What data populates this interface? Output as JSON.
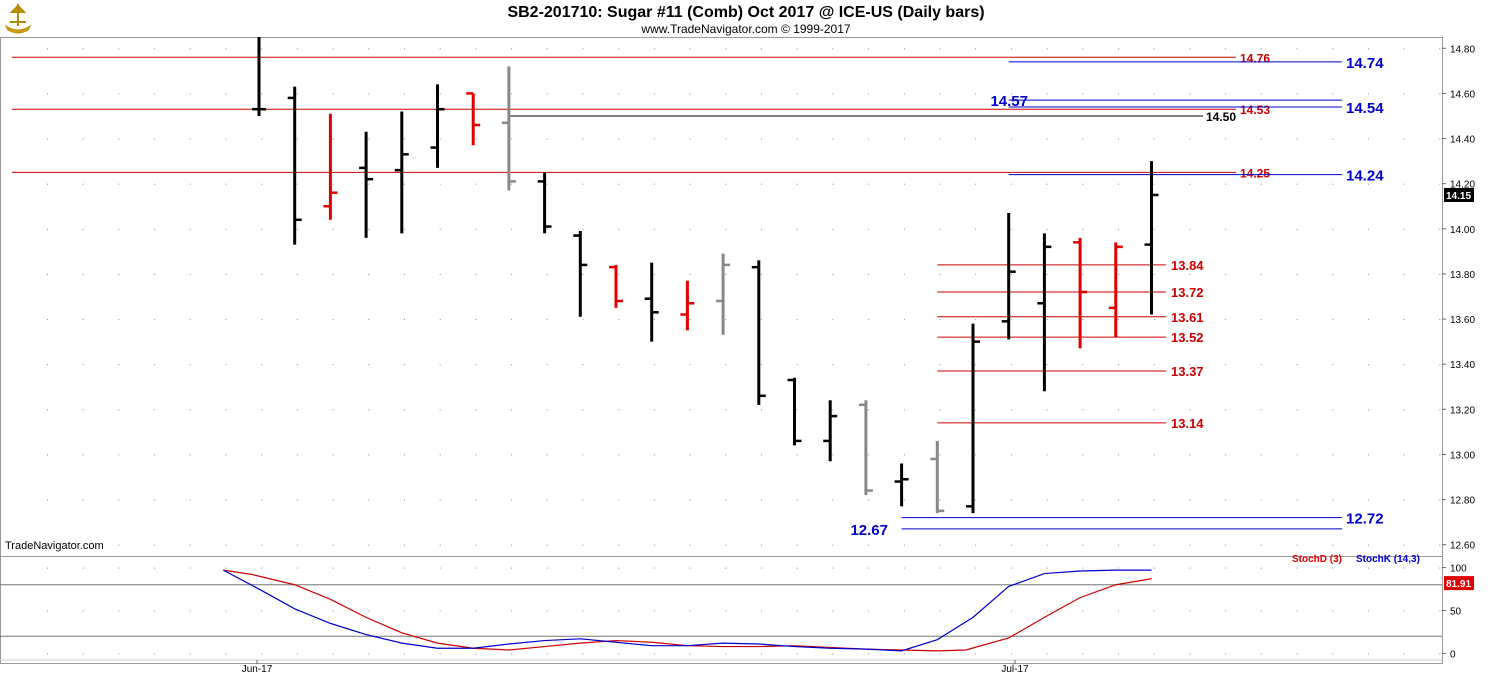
{
  "header": {
    "title": "SB2-201710:  Sugar #11 (Comb) Oct 2017 @ ICE-US  (Daily bars)",
    "subtitle": "www.TradeNavigator.com © 1999-2017",
    "watermark": "TradeNavigator.com",
    "logo_icon": "trading-ship-logo-icon"
  },
  "colors": {
    "up": "#000000",
    "down": "#e00000",
    "neutral": "#888888",
    "green": "#00cc00",
    "red_line": "#cc0000",
    "blue_line": "#0000cc",
    "grid_dot": "#888888"
  },
  "chart_data": [
    {
      "type": "ohlc",
      "name": "price",
      "ylim": [
        12.55,
        14.85
      ],
      "yticks": [
        "14.80",
        "14.60",
        "14.40",
        "14.20",
        "14.00",
        "13.80",
        "13.60",
        "13.40",
        "13.20",
        "13.00",
        "12.80",
        "12.60"
      ],
      "xticks": [
        {
          "label": "Jun-17",
          "bar": 6
        },
        {
          "label": "Jul-17",
          "bar": 28
        }
      ],
      "last_price": "14.15",
      "bars": [
        {
          "bar": 0,
          "o": 14.53,
          "h": 14.85,
          "l": 14.5,
          "c": 14.53,
          "color": "up"
        },
        {
          "bar": 1,
          "o": 14.58,
          "h": 14.63,
          "l": 13.93,
          "c": 14.04,
          "color": "up"
        },
        {
          "bar": 2,
          "o": 14.1,
          "h": 14.51,
          "l": 14.04,
          "c": 14.16,
          "color": "down"
        },
        {
          "bar": 3,
          "o": 14.27,
          "h": 14.43,
          "l": 13.96,
          "c": 14.22,
          "color": "up"
        },
        {
          "bar": 4,
          "o": 14.26,
          "h": 14.52,
          "l": 13.98,
          "c": 14.33,
          "color": "up"
        },
        {
          "bar": 5,
          "o": 14.36,
          "h": 14.64,
          "l": 14.27,
          "c": 14.53,
          "color": "up"
        },
        {
          "bar": 6,
          "o": 14.6,
          "h": 14.6,
          "l": 14.37,
          "c": 14.46,
          "color": "down"
        },
        {
          "bar": 7,
          "o": 14.47,
          "h": 14.72,
          "l": 14.17,
          "c": 14.21,
          "color": "neutral"
        },
        {
          "bar": 8,
          "o": 14.21,
          "h": 14.25,
          "l": 13.98,
          "c": 14.01,
          "color": "up"
        },
        {
          "bar": 9,
          "o": 13.97,
          "h": 13.99,
          "l": 13.61,
          "c": 13.84,
          "color": "up"
        },
        {
          "bar": 10,
          "o": 13.83,
          "h": 13.84,
          "l": 13.65,
          "c": 13.68,
          "color": "down"
        },
        {
          "bar": 11,
          "o": 13.69,
          "h": 13.85,
          "l": 13.5,
          "c": 13.63,
          "color": "up"
        },
        {
          "bar": 12,
          "o": 13.62,
          "h": 13.77,
          "l": 13.55,
          "c": 13.67,
          "color": "down"
        },
        {
          "bar": 13,
          "o": 13.68,
          "h": 13.89,
          "l": 13.53,
          "c": 13.84,
          "color": "neutral"
        },
        {
          "bar": 14,
          "o": 13.83,
          "h": 13.86,
          "l": 13.22,
          "c": 13.26,
          "color": "up"
        },
        {
          "bar": 15,
          "o": 13.33,
          "h": 13.34,
          "l": 13.04,
          "c": 13.06,
          "color": "up"
        },
        {
          "bar": 16,
          "o": 13.06,
          "h": 13.24,
          "l": 12.97,
          "c": 13.17,
          "color": "up"
        },
        {
          "bar": 17,
          "o": 13.22,
          "h": 13.24,
          "l": 12.82,
          "c": 12.84,
          "color": "neutral"
        },
        {
          "bar": 18,
          "o": 12.88,
          "h": 12.96,
          "l": 12.77,
          "c": 12.89,
          "color": "up"
        },
        {
          "bar": 19,
          "o": 12.98,
          "h": 13.06,
          "l": 12.74,
          "c": 12.75,
          "color": "neutral"
        },
        {
          "bar": 20,
          "o": 12.77,
          "h": 13.58,
          "l": 12.74,
          "c": 13.5,
          "color": "up"
        },
        {
          "bar": 21,
          "o": 13.59,
          "h": 14.07,
          "l": 13.51,
          "c": 13.81,
          "color": "up"
        },
        {
          "bar": 22,
          "o": 13.67,
          "h": 13.98,
          "l": 13.28,
          "c": 13.92,
          "color": "up"
        },
        {
          "bar": 23,
          "o": 13.94,
          "h": 13.96,
          "l": 13.47,
          "c": 13.72,
          "color": "down"
        },
        {
          "bar": 24,
          "o": 13.65,
          "h": 13.94,
          "l": 13.52,
          "c": 13.92,
          "color": "down"
        },
        {
          "bar": 25,
          "o": 13.93,
          "h": 14.3,
          "l": 13.62,
          "c": 14.15,
          "color": "up"
        }
      ],
      "horizontal_lines": [
        {
          "value": 14.76,
          "label": "14.76",
          "color": "red_line",
          "x_start_bar": -1,
          "label_bar": 27
        },
        {
          "value": 14.53,
          "label": "14.53",
          "color": "red_line",
          "x_start_bar": -1,
          "label_bar": 27
        },
        {
          "value": 14.25,
          "label": "14.25",
          "color": "red_line",
          "x_start_bar": -1,
          "label_bar": 27
        },
        {
          "value": 14.74,
          "label": "14.74",
          "color": "blue_line",
          "x_start_bar": 21,
          "label_bar": 29
        },
        {
          "value": 14.57,
          "label": "14.57",
          "color": "blue_line",
          "x_start_bar": 21,
          "label_bar": 20
        },
        {
          "value": 14.54,
          "label": "14.54",
          "color": "blue_line",
          "x_start_bar": 21,
          "label_bar": 29
        },
        {
          "value": 14.5,
          "label": "14.50",
          "color": "up",
          "x_start_bar": 7,
          "label_bar": 26
        },
        {
          "value": 14.24,
          "label": "14.24",
          "color": "blue_line",
          "x_start_bar": 21,
          "label_bar": 29
        },
        {
          "value": 13.84,
          "label": "13.84",
          "color": "red_line",
          "x_start_bar": 19,
          "label_bar": 26
        },
        {
          "value": 13.72,
          "label": "13.72",
          "color": "red_line",
          "x_start_bar": 19,
          "label_bar": 26
        },
        {
          "value": 13.61,
          "label": "13.61",
          "color": "red_line",
          "x_start_bar": 19,
          "label_bar": 26
        },
        {
          "value": 13.52,
          "label": "13.52",
          "color": "red_line",
          "x_start_bar": 19,
          "label_bar": 26
        },
        {
          "value": 13.37,
          "label": "13.37",
          "color": "red_line",
          "x_start_bar": 19,
          "label_bar": 26
        },
        {
          "value": 13.14,
          "label": "13.14",
          "color": "red_line",
          "x_start_bar": 19,
          "label_bar": 26
        },
        {
          "value": 12.72,
          "label": "12.72",
          "color": "blue_line",
          "x_start_bar": 18,
          "label_bar": 29
        },
        {
          "value": 12.67,
          "label": "12.67",
          "color": "blue_line",
          "x_start_bar": 18,
          "label_bar": 17
        }
      ]
    },
    {
      "type": "line",
      "name": "stochastic",
      "ylim": [
        -3,
        103
      ],
      "yticks": [
        "100",
        "50",
        "0"
      ],
      "reference_lines": [
        80,
        20
      ],
      "last_value": "81.91",
      "legend": [
        "StochD (3)",
        "StochK (14,3)"
      ],
      "series": [
        {
          "name": "StochD (3)",
          "color": "red_line",
          "x": [
            -1,
            -0.2,
            1,
            2,
            3,
            4,
            5,
            6,
            7,
            8,
            9,
            10,
            11,
            12,
            13,
            14,
            15,
            16,
            17,
            18,
            19,
            19.8,
            21,
            22,
            23,
            24,
            25
          ],
          "values": [
            97,
            92,
            80,
            63,
            42,
            24,
            12,
            6,
            4,
            8,
            12,
            15,
            13,
            9,
            8,
            8,
            9,
            7,
            5,
            4,
            3,
            4,
            18,
            42,
            65,
            80,
            87
          ]
        },
        {
          "name": "StochK (14,3)",
          "color": "blue_line",
          "x": [
            -1,
            0,
            1,
            2,
            3,
            4,
            5,
            6,
            7,
            8,
            9,
            10,
            11,
            12,
            13,
            14,
            15,
            16,
            17,
            18,
            19,
            20,
            21,
            22,
            23,
            24,
            25
          ],
          "values": [
            97,
            75,
            52,
            35,
            22,
            12,
            6,
            6,
            11,
            15,
            17,
            13,
            9,
            9,
            12,
            11,
            8,
            6,
            5,
            3,
            16,
            42,
            78,
            93,
            96,
            97,
            97
          ]
        }
      ]
    }
  ]
}
